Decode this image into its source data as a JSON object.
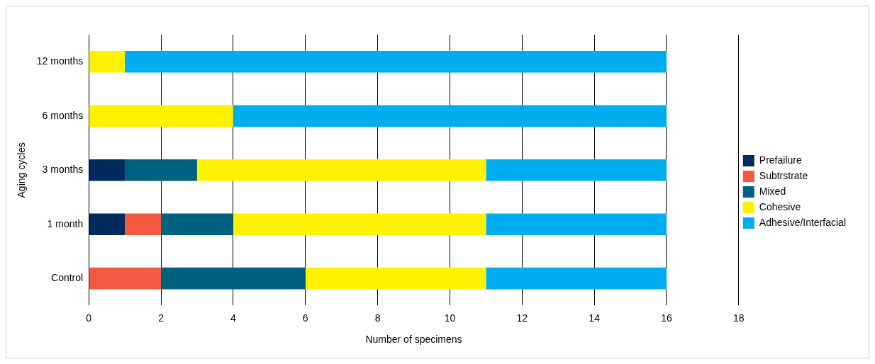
{
  "chart_data": {
    "type": "bar",
    "orientation": "horizontal",
    "stacked": true,
    "xlabel": "Number of specimens",
    "ylabel": "Aging cycles",
    "categories": [
      "12 months",
      "6 months",
      "3 months",
      "1 month",
      "Control"
    ],
    "series": [
      {
        "name": "Prefailure",
        "color": "#002b5c",
        "values": [
          0,
          0,
          1,
          1,
          0
        ]
      },
      {
        "name": "Subtrstrate",
        "color": "#f15a40",
        "values": [
          0,
          0,
          0,
          1,
          2
        ]
      },
      {
        "name": "Mixed",
        "color": "#006080",
        "values": [
          0,
          0,
          2,
          2,
          4
        ]
      },
      {
        "name": "Cohesive",
        "color": "#fff200",
        "values": [
          1,
          4,
          8,
          7,
          5
        ]
      },
      {
        "name": "Adhesive/Interfacial",
        "color": "#00aeef",
        "values": [
          15,
          12,
          5,
          5,
          5
        ]
      }
    ],
    "xlim": [
      0,
      18
    ],
    "xticks": [
      0,
      2,
      4,
      6,
      8,
      10,
      12,
      14,
      16,
      18
    ],
    "grid": "x",
    "legend": "right"
  }
}
